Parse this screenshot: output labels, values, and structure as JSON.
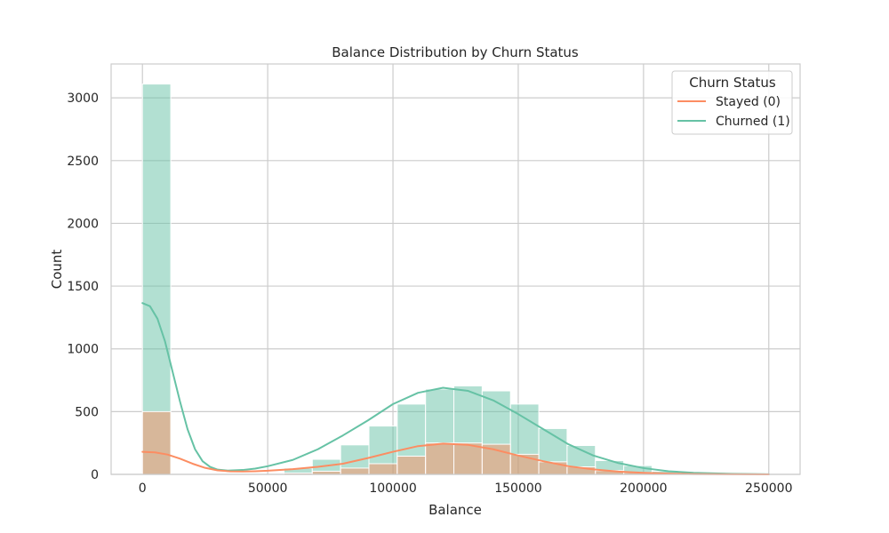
{
  "chart_data": {
    "type": "histogram",
    "title": "Balance Distribution by Churn Status",
    "xlabel": "Balance",
    "ylabel": "Count",
    "xlim": [
      -12500,
      262500
    ],
    "ylim": [
      0,
      3270
    ],
    "xticks": [
      0,
      50000,
      100000,
      150000,
      200000,
      250000
    ],
    "yticks": [
      0,
      500,
      1000,
      1500,
      2000,
      2500,
      3000
    ],
    "grid": true,
    "bin_edges": [
      0,
      11300,
      22600,
      33900,
      45200,
      56500,
      67800,
      79100,
      90400,
      101700,
      113000,
      124300,
      135600,
      146900,
      158200,
      169500,
      180800,
      192100,
      203400,
      214700,
      226000,
      237300,
      248600,
      259900
    ],
    "legend": {
      "title": "Churn Status",
      "position": "top-right"
    },
    "series": [
      {
        "name": "Stayed (0)",
        "color": "#fc8d62",
        "counts": [
          500,
          0,
          0,
          0,
          0,
          10,
          25,
          50,
          85,
          145,
          250,
          250,
          240,
          160,
          100,
          60,
          30,
          15,
          5,
          2,
          0,
          0,
          0
        ],
        "kde": [
          [
            0,
            180
          ],
          [
            5000,
            175
          ],
          [
            10000,
            158
          ],
          [
            15000,
            125
          ],
          [
            20000,
            85
          ],
          [
            25000,
            52
          ],
          [
            30000,
            32
          ],
          [
            35000,
            24
          ],
          [
            40000,
            23
          ],
          [
            45000,
            25
          ],
          [
            50000,
            29
          ],
          [
            60000,
            42
          ],
          [
            70000,
            60
          ],
          [
            80000,
            85
          ],
          [
            90000,
            130
          ],
          [
            100000,
            180
          ],
          [
            110000,
            225
          ],
          [
            120000,
            245
          ],
          [
            130000,
            235
          ],
          [
            140000,
            200
          ],
          [
            150000,
            150
          ],
          [
            160000,
            105
          ],
          [
            170000,
            65
          ],
          [
            180000,
            40
          ],
          [
            190000,
            22
          ],
          [
            200000,
            12
          ],
          [
            210000,
            6
          ],
          [
            220000,
            3
          ],
          [
            235000,
            1
          ],
          [
            250000,
            0
          ]
        ]
      },
      {
        "name": "Churned (1)",
        "color": "#66c2a5",
        "counts": [
          3110,
          0,
          0,
          0,
          0,
          50,
          120,
          235,
          385,
          560,
          680,
          705,
          665,
          560,
          365,
          230,
          110,
          70,
          25,
          10,
          0,
          0,
          0
        ],
        "kde": [
          [
            0,
            1365
          ],
          [
            3000,
            1340
          ],
          [
            6000,
            1240
          ],
          [
            9000,
            1060
          ],
          [
            12000,
            820
          ],
          [
            15000,
            580
          ],
          [
            18000,
            360
          ],
          [
            21000,
            200
          ],
          [
            24000,
            105
          ],
          [
            27000,
            60
          ],
          [
            30000,
            38
          ],
          [
            34000,
            30
          ],
          [
            40000,
            35
          ],
          [
            45000,
            46
          ],
          [
            50000,
            65
          ],
          [
            60000,
            115
          ],
          [
            70000,
            200
          ],
          [
            80000,
            310
          ],
          [
            90000,
            430
          ],
          [
            100000,
            560
          ],
          [
            110000,
            650
          ],
          [
            120000,
            690
          ],
          [
            130000,
            665
          ],
          [
            140000,
            590
          ],
          [
            150000,
            480
          ],
          [
            160000,
            360
          ],
          [
            170000,
            240
          ],
          [
            180000,
            150
          ],
          [
            190000,
            90
          ],
          [
            200000,
            50
          ],
          [
            210000,
            25
          ],
          [
            220000,
            12
          ],
          [
            235000,
            4
          ],
          [
            250000,
            1
          ]
        ]
      }
    ]
  }
}
